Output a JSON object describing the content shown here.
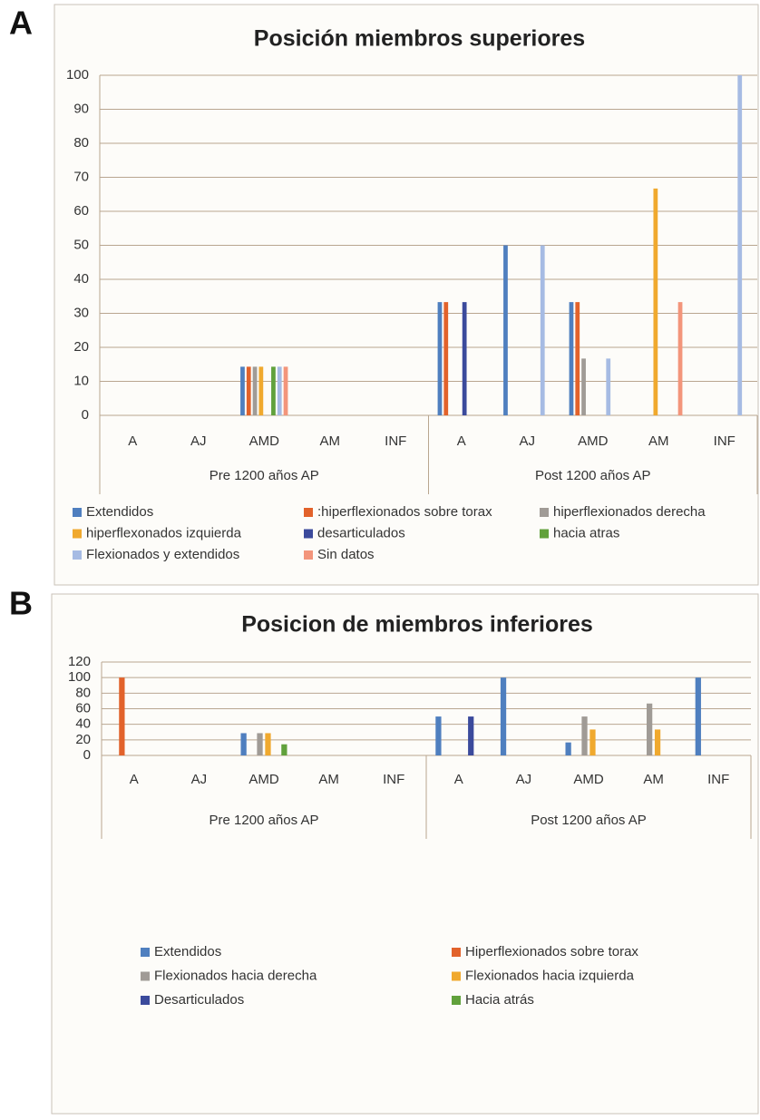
{
  "chart_data": [
    {
      "type": "bar",
      "label": "A",
      "title": "Posición miembros superiores",
      "categories": [
        "A",
        "AJ",
        "AMD",
        "AM",
        "INF",
        "A",
        "AJ",
        "AMD",
        "AM",
        "INF"
      ],
      "group_labels": [
        "Pre 1200 años AP",
        "Post 1200 años AP"
      ],
      "ylim": [
        0,
        100
      ],
      "yticks": [
        0,
        10,
        20,
        30,
        40,
        50,
        60,
        70,
        80,
        90,
        100
      ],
      "grid": true,
      "series": [
        {
          "name": "Extendidos",
          "color": "#4f7fbf",
          "values": [
            0,
            0,
            14.3,
            0,
            0,
            33.3,
            50,
            33.3,
            0,
            0
          ]
        },
        {
          "name": ":hiperflexionados sobre torax",
          "color": "#e2622b",
          "values": [
            0,
            0,
            14.3,
            0,
            0,
            33.3,
            0,
            33.3,
            0,
            0
          ]
        },
        {
          "name": "hiperflexionados derecha",
          "color": "#a09b96",
          "values": [
            0,
            0,
            14.3,
            0,
            0,
            0,
            0,
            16.7,
            0,
            0
          ]
        },
        {
          "name": "hiperflexonados izquierda",
          "color": "#f0a92e",
          "values": [
            0,
            0,
            14.3,
            0,
            0,
            0,
            0,
            0,
            66.7,
            0
          ]
        },
        {
          "name": "desarticulados",
          "color": "#3b4a9c",
          "values": [
            0,
            0,
            0,
            0,
            0,
            33.3,
            0,
            0,
            0,
            0
          ]
        },
        {
          "name": "hacia atras",
          "color": "#61a13c",
          "values": [
            0,
            0,
            14.3,
            0,
            0,
            0,
            0,
            0,
            0,
            0
          ]
        },
        {
          "name": "Flexionados y extendidos",
          "color": "#a6bbe3",
          "values": [
            0,
            0,
            14.3,
            0,
            0,
            0,
            50,
            16.7,
            0,
            100
          ]
        },
        {
          "name": "Sin datos",
          "color": "#f3957b",
          "values": [
            0,
            0,
            14.3,
            0,
            0,
            0,
            0,
            0,
            33.3,
            0
          ]
        }
      ]
    },
    {
      "type": "bar",
      "label": "B",
      "title": "Posicion de miembros inferiores",
      "categories": [
        "A",
        "AJ",
        "AMD",
        "AM",
        "INF",
        "A",
        "AJ",
        "AMD",
        "AM",
        "INF"
      ],
      "group_labels": [
        "Pre 1200 años AP",
        "Post 1200 años AP"
      ],
      "ylim": [
        0,
        120
      ],
      "yticks": [
        0,
        20,
        40,
        60,
        80,
        100,
        120
      ],
      "grid": true,
      "series": [
        {
          "name": "Extendidos",
          "color": "#4f7fbf",
          "values": [
            0,
            0,
            28.6,
            0,
            0,
            50,
            100,
            16.7,
            0,
            100
          ]
        },
        {
          "name": "Hiperflexionados sobre torax",
          "color": "#e2622b",
          "values": [
            100,
            0,
            0,
            0,
            0,
            0,
            0,
            0,
            0,
            0
          ]
        },
        {
          "name": "Flexionados hacia derecha",
          "color": "#a09b96",
          "values": [
            0,
            0,
            28.6,
            0,
            0,
            0,
            0,
            50,
            66.7,
            0
          ]
        },
        {
          "name": "Flexionados hacia izquierda",
          "color": "#f0a92e",
          "values": [
            0,
            0,
            28.6,
            0,
            0,
            0,
            0,
            33.3,
            33.3,
            0
          ]
        },
        {
          "name": "Desarticulados",
          "color": "#3b4a9c",
          "values": [
            0,
            0,
            0,
            0,
            0,
            50,
            0,
            0,
            0,
            0
          ]
        },
        {
          "name": "Hacia atrás",
          "color": "#61a13c",
          "values": [
            0,
            0,
            14.3,
            0,
            0,
            0,
            0,
            0,
            0,
            0
          ]
        }
      ]
    }
  ]
}
